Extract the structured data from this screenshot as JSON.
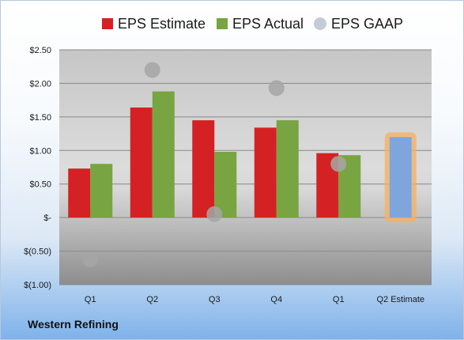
{
  "chart_data": {
    "type": "bar",
    "categories": [
      "Q1",
      "Q2",
      "Q3",
      "Q4",
      "Q1",
      "Q2 Estimate"
    ],
    "series": [
      {
        "name": "EPS Estimate",
        "color": "#d42224",
        "values": [
          0.73,
          1.64,
          1.45,
          1.34,
          0.96,
          null
        ]
      },
      {
        "name": "EPS Actual",
        "color": "#78a442",
        "values": [
          0.8,
          1.88,
          0.98,
          1.45,
          0.93,
          null
        ]
      },
      {
        "name": "EPS GAAP",
        "color": "#a6a6a6",
        "type": "scatter",
        "values": [
          -0.62,
          2.2,
          0.05,
          1.93,
          0.8,
          null
        ]
      },
      {
        "name": "",
        "color": "#7ea6dd",
        "highlight": "#f5b265",
        "values": [
          null,
          null,
          null,
          null,
          null,
          1.2
        ]
      }
    ],
    "ylim": [
      -1.0,
      2.5
    ],
    "yticks": [
      2.5,
      2.0,
      1.5,
      1.0,
      0.5,
      0.0,
      -0.5,
      -1.0
    ],
    "yticklabels": [
      "$2.50",
      "$2.00",
      "$1.50",
      "$1.00",
      "$0.50",
      "$-",
      "$(0.50)",
      "$(1.00)"
    ],
    "grid": true,
    "legend_position": "top",
    "title": "",
    "xlabel": "",
    "ylabel": ""
  },
  "footer": {
    "company": "Western Refining"
  }
}
